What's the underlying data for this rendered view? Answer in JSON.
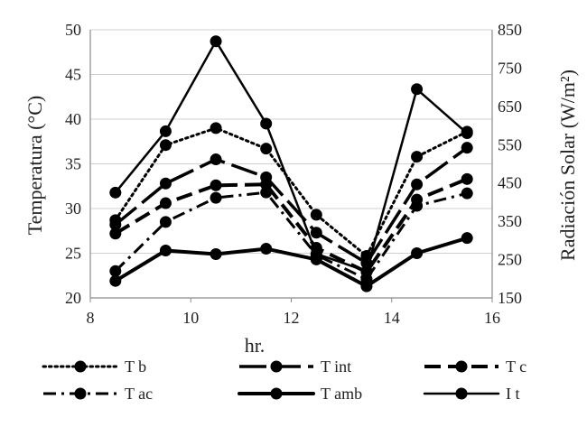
{
  "chart_data": {
    "type": "line",
    "title": "",
    "xlabel": "hr.",
    "ylabel": "Temperatura (°C)",
    "y2label": "Radiación Solar (W/m²)",
    "xlim": [
      8,
      16
    ],
    "ylim": [
      20,
      50
    ],
    "y2lim": [
      150,
      850
    ],
    "x_ticks": [
      "8",
      "10",
      "12",
      "14",
      "16"
    ],
    "y_ticks": [
      "20",
      "25",
      "30",
      "35",
      "40",
      "45",
      "50"
    ],
    "y2_ticks": [
      "150",
      "250",
      "350",
      "450",
      "550",
      "650",
      "750",
      "850"
    ],
    "grid": "horizontal",
    "legend_position": "bottom",
    "x": [
      8.5,
      9.5,
      10.5,
      11.5,
      12.5,
      13.5,
      14.5,
      15.5
    ],
    "series": [
      {
        "name": "T b",
        "axis": "left",
        "dash": "dot",
        "values": [
          28.7,
          37.1,
          39.0,
          36.7,
          29.3,
          24.7,
          35.8,
          38.6
        ]
      },
      {
        "name": "T int",
        "axis": "left",
        "dash": "longdash",
        "values": [
          28.2,
          32.8,
          35.5,
          33.5,
          27.3,
          23.9,
          32.7,
          36.8
        ]
      },
      {
        "name": "T c",
        "axis": "left",
        "dash": "dash",
        "values": [
          27.2,
          30.6,
          32.6,
          32.7,
          25.6,
          22.9,
          31.0,
          33.3
        ]
      },
      {
        "name": "T ac",
        "axis": "left",
        "dash": "dashdot",
        "values": [
          23.0,
          28.5,
          31.2,
          31.8,
          24.8,
          22.1,
          30.3,
          31.7
        ]
      },
      {
        "name": "T amb",
        "axis": "left",
        "dash": "solid-thick",
        "values": [
          21.9,
          25.3,
          24.9,
          25.5,
          24.3,
          21.3,
          25.0,
          26.7
        ]
      },
      {
        "name": "I t",
        "axis": "right",
        "dash": "solid",
        "values": [
          425,
          585,
          820,
          605,
          265,
          220,
          695,
          580
        ]
      }
    ]
  }
}
